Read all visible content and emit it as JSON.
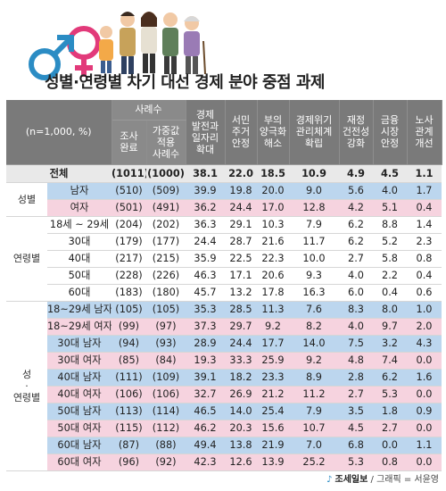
{
  "title": "성별·연령별 차기 대선 경제 분야 중점 과제",
  "colors": {
    "male_symbol": "#2b8cc4",
    "female_symbol": "#e23a7a",
    "header_bg": "#7a7a7a",
    "male_row": "#bcd6ee",
    "female_row": "#f6d3df",
    "total_row": "#e9e9e9"
  },
  "table": {
    "n_note": "(n=1,000, %)",
    "sample_header": "사례수",
    "col_headers": [
      "조사 완료",
      "가중값 적용 사례수",
      "경제 발전과 일자리 확대",
      "서민 주거 안정",
      "부의 양극화 해소",
      "경제위기 관리체계 확립",
      "재정 건전성 강화",
      "금융 시장 안정",
      "노사 관계 개선"
    ],
    "col_header_lines": [
      [
        "조사",
        "완료"
      ],
      [
        "가중값",
        "적용",
        "사례수"
      ],
      [
        "경제",
        "발전과",
        "일자리",
        "확대"
      ],
      [
        "서민",
        "주거",
        "안정"
      ],
      [
        "부의",
        "양극화",
        "해소"
      ],
      [
        "경제위기",
        "관리체계",
        "확립"
      ],
      [
        "재정",
        "건전성",
        "강화"
      ],
      [
        "금융",
        "시장",
        "안정"
      ],
      [
        "노사",
        "관계",
        "개선"
      ]
    ],
    "total": {
      "label": "전체",
      "values": [
        "(1011)",
        "(1000)",
        "38.1",
        "22.0",
        "18.5",
        "10.9",
        "4.9",
        "4.5",
        "1.1"
      ]
    },
    "groups": [
      {
        "name": "성별",
        "rows": [
          {
            "label": "남자",
            "tone": "blue",
            "values": [
              "(510)",
              "(509)",
              "39.9",
              "19.8",
              "20.0",
              "9.0",
              "5.6",
              "4.0",
              "1.7"
            ]
          },
          {
            "label": "여자",
            "tone": "pink",
            "values": [
              "(501)",
              "(491)",
              "36.2",
              "24.4",
              "17.0",
              "12.8",
              "4.2",
              "5.1",
              "0.4"
            ]
          }
        ]
      },
      {
        "name": "연령별",
        "rows": [
          {
            "label": "18세 ~ 29세",
            "tone": "white",
            "values": [
              "(204)",
              "(202)",
              "36.3",
              "29.1",
              "10.3",
              "7.9",
              "6.2",
              "8.8",
              "1.4"
            ]
          },
          {
            "label": "30대",
            "tone": "white",
            "values": [
              "(179)",
              "(177)",
              "24.4",
              "28.7",
              "21.6",
              "11.7",
              "6.2",
              "5.2",
              "2.3"
            ]
          },
          {
            "label": "40대",
            "tone": "white",
            "values": [
              "(217)",
              "(215)",
              "35.9",
              "22.5",
              "22.3",
              "10.0",
              "2.7",
              "5.8",
              "0.8"
            ]
          },
          {
            "label": "50대",
            "tone": "white",
            "values": [
              "(228)",
              "(226)",
              "46.3",
              "17.1",
              "20.6",
              "9.3",
              "4.0",
              "2.2",
              "0.4"
            ]
          },
          {
            "label": "60대",
            "tone": "white",
            "values": [
              "(183)",
              "(180)",
              "45.7",
              "13.2",
              "17.8",
              "16.3",
              "6.0",
              "0.4",
              "0.6"
            ]
          }
        ]
      },
      {
        "name": "성 · 연령별",
        "name_lines": [
          "성",
          "·",
          "연령별"
        ],
        "rows": [
          {
            "label": "18~29세 남자",
            "tone": "blue",
            "values": [
              "(105)",
              "(105)",
              "35.3",
              "28.5",
              "11.3",
              "7.6",
              "8.3",
              "8.0",
              "1.0"
            ]
          },
          {
            "label": "18~29세 여자",
            "tone": "pink",
            "values": [
              "(99)",
              "(97)",
              "37.3",
              "29.7",
              "9.2",
              "8.2",
              "4.0",
              "9.7",
              "2.0"
            ]
          },
          {
            "label": "30대 남자",
            "tone": "blue",
            "values": [
              "(94)",
              "(93)",
              "28.9",
              "24.4",
              "17.7",
              "14.0",
              "7.5",
              "3.2",
              "4.3"
            ]
          },
          {
            "label": "30대 여자",
            "tone": "pink",
            "values": [
              "(85)",
              "(84)",
              "19.3",
              "33.3",
              "25.9",
              "9.2",
              "4.8",
              "7.4",
              "0.0"
            ]
          },
          {
            "label": "40대 남자",
            "tone": "blue",
            "values": [
              "(111)",
              "(109)",
              "39.1",
              "18.2",
              "23.3",
              "8.9",
              "2.8",
              "6.2",
              "1.6"
            ]
          },
          {
            "label": "40대 여자",
            "tone": "pink",
            "values": [
              "(106)",
              "(106)",
              "32.7",
              "26.9",
              "21.2",
              "11.2",
              "2.7",
              "5.3",
              "0.0"
            ]
          },
          {
            "label": "50대 남자",
            "tone": "blue",
            "values": [
              "(113)",
              "(114)",
              "46.5",
              "14.0",
              "25.4",
              "7.9",
              "3.5",
              "1.8",
              "0.9"
            ]
          },
          {
            "label": "50대 여자",
            "tone": "pink",
            "values": [
              "(115)",
              "(112)",
              "46.2",
              "20.3",
              "15.6",
              "10.7",
              "4.5",
              "2.7",
              "0.0"
            ]
          },
          {
            "label": "60대 남자",
            "tone": "blue",
            "values": [
              "(87)",
              "(88)",
              "49.4",
              "13.8",
              "21.9",
              "7.0",
              "6.8",
              "0.0",
              "1.1"
            ]
          },
          {
            "label": "60대 여자",
            "tone": "pink",
            "values": [
              "(96)",
              "(92)",
              "42.3",
              "12.6",
              "13.9",
              "25.2",
              "5.3",
              "0.8",
              "0.0"
            ]
          }
        ]
      }
    ]
  },
  "credit": {
    "logo": "조세일보",
    "separator": " / ",
    "text": "그래픽 = 서윤영"
  }
}
